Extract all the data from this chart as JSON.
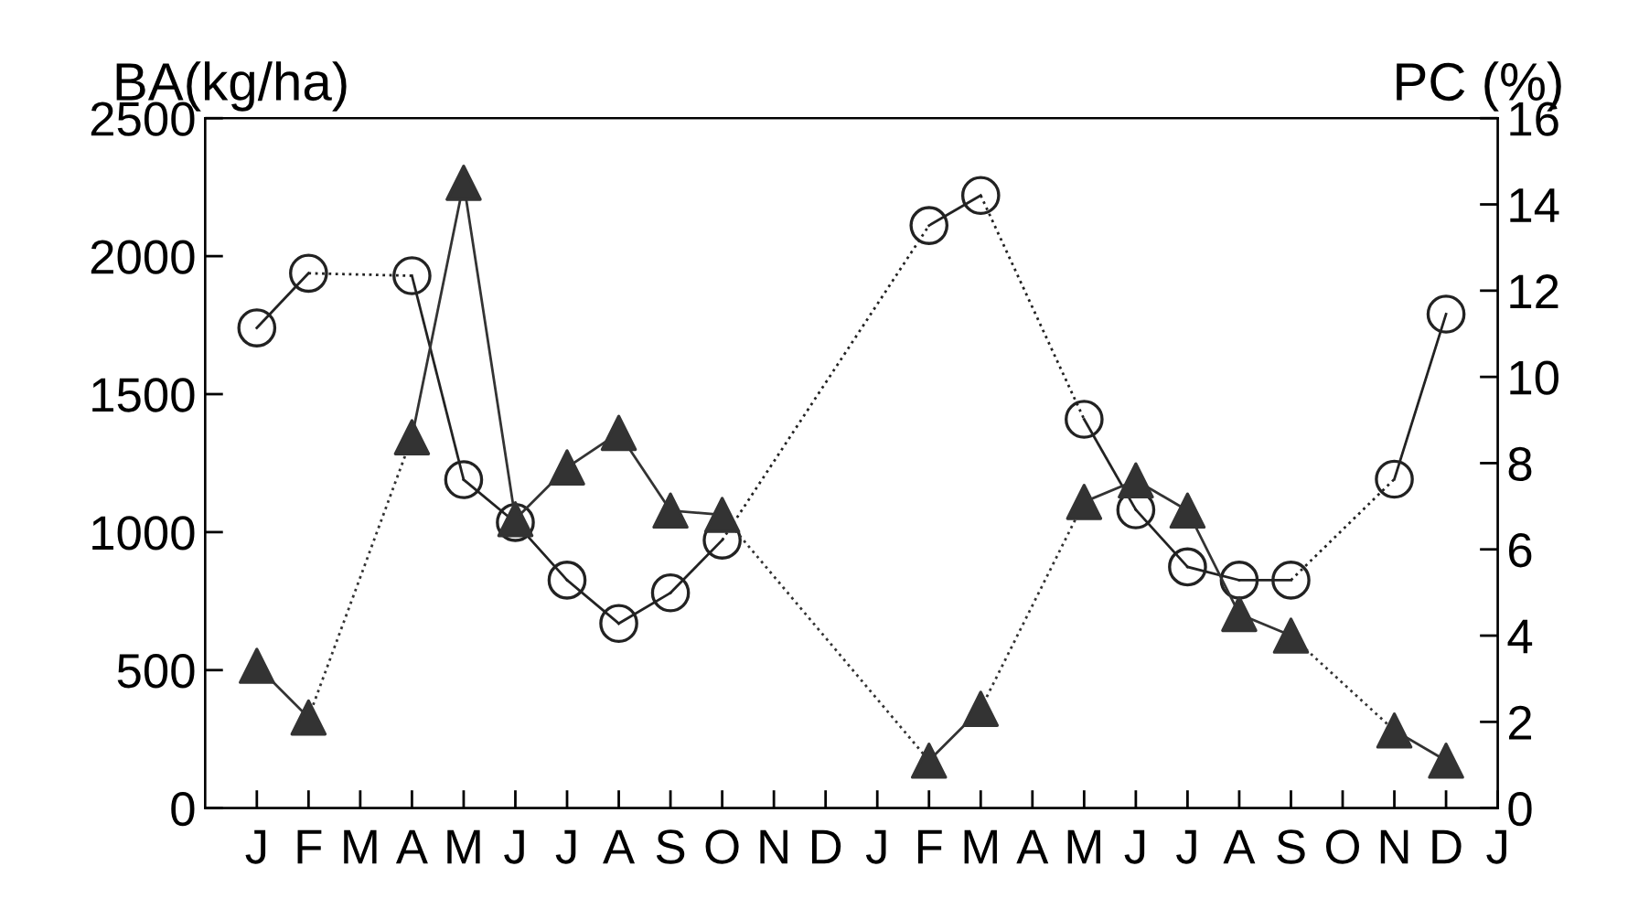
{
  "chart_data": {
    "type": "line",
    "ylabel": "BA(kg/ha)",
    "y2label": "PC (%)",
    "categories": [
      "J",
      "F",
      "M",
      "A",
      "M",
      "J",
      "J",
      "A",
      "S",
      "O",
      "N",
      "D",
      "J",
      "F",
      "M",
      "A",
      "M",
      "J",
      "J",
      "A",
      "S",
      "O",
      "N",
      "D",
      "J"
    ],
    "series": [
      {
        "color": "#222222",
        "marker": "circle",
        "values": [
          1740,
          1938,
          null,
          1929,
          1190,
          1035,
          826,
          669,
          780,
          971,
          null,
          null,
          null,
          2111,
          2220,
          null,
          1409,
          1081,
          874,
          826,
          826,
          null,
          1192,
          1790,
          null
        ]
      },
      {
        "color": "#333333",
        "marker": "triangle",
        "axis": "y2",
        "values": [
          3.3,
          2.1,
          null,
          8.6,
          14.5,
          6.7,
          7.9,
          8.7,
          6.9,
          6.8,
          null,
          null,
          null,
          1.1,
          2.3,
          null,
          7.1,
          7.6,
          6.9,
          4.5,
          4.0,
          null,
          1.8,
          1.1,
          null
        ]
      }
    ],
    "ylim": [
      0,
      2500
    ],
    "yticks": [
      0,
      500,
      1000,
      1500,
      2000,
      2500
    ],
    "y2lim": [
      0,
      16
    ],
    "y2ticks": [
      0,
      2,
      4,
      6,
      8,
      10,
      12,
      14,
      16
    ],
    "grid": false,
    "legend": false
  }
}
